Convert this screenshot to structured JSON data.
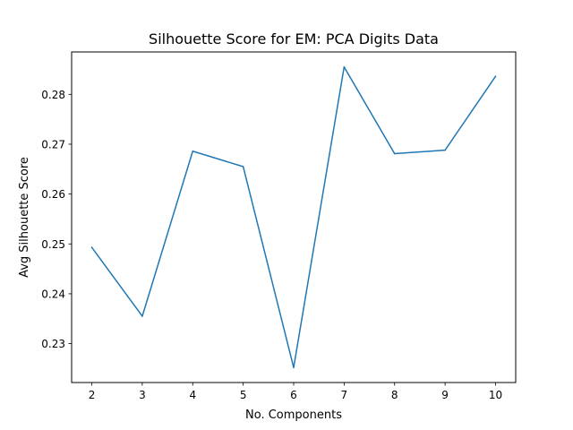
{
  "chart_data": {
    "type": "line",
    "title": "Silhouette Score for EM: PCA Digits Data",
    "xlabel": "No. Components",
    "ylabel": "Avg Silhouette Score",
    "x": [
      2,
      3,
      4,
      5,
      6,
      7,
      8,
      9,
      10
    ],
    "series": [
      {
        "color": "#1f77b4",
        "values": [
          0.2493,
          0.2355,
          0.2686,
          0.2655,
          0.2252,
          0.2855,
          0.2681,
          0.2688,
          0.2836
        ]
      }
    ],
    "xlim": [
      1.6,
      10.4
    ],
    "ylim": [
      0.2222,
      0.2885
    ],
    "x_ticks": [
      "2",
      "3",
      "4",
      "5",
      "6",
      "7",
      "8",
      "9",
      "10"
    ],
    "x_tick_values": [
      2,
      3,
      4,
      5,
      6,
      7,
      8,
      9,
      10
    ],
    "y_ticks": [
      "0.23",
      "0.24",
      "0.25",
      "0.26",
      "0.27",
      "0.28"
    ],
    "y_tick_values": [
      0.23,
      0.24,
      0.25,
      0.26,
      0.27,
      0.28
    ],
    "grid": false,
    "legend": "none"
  }
}
